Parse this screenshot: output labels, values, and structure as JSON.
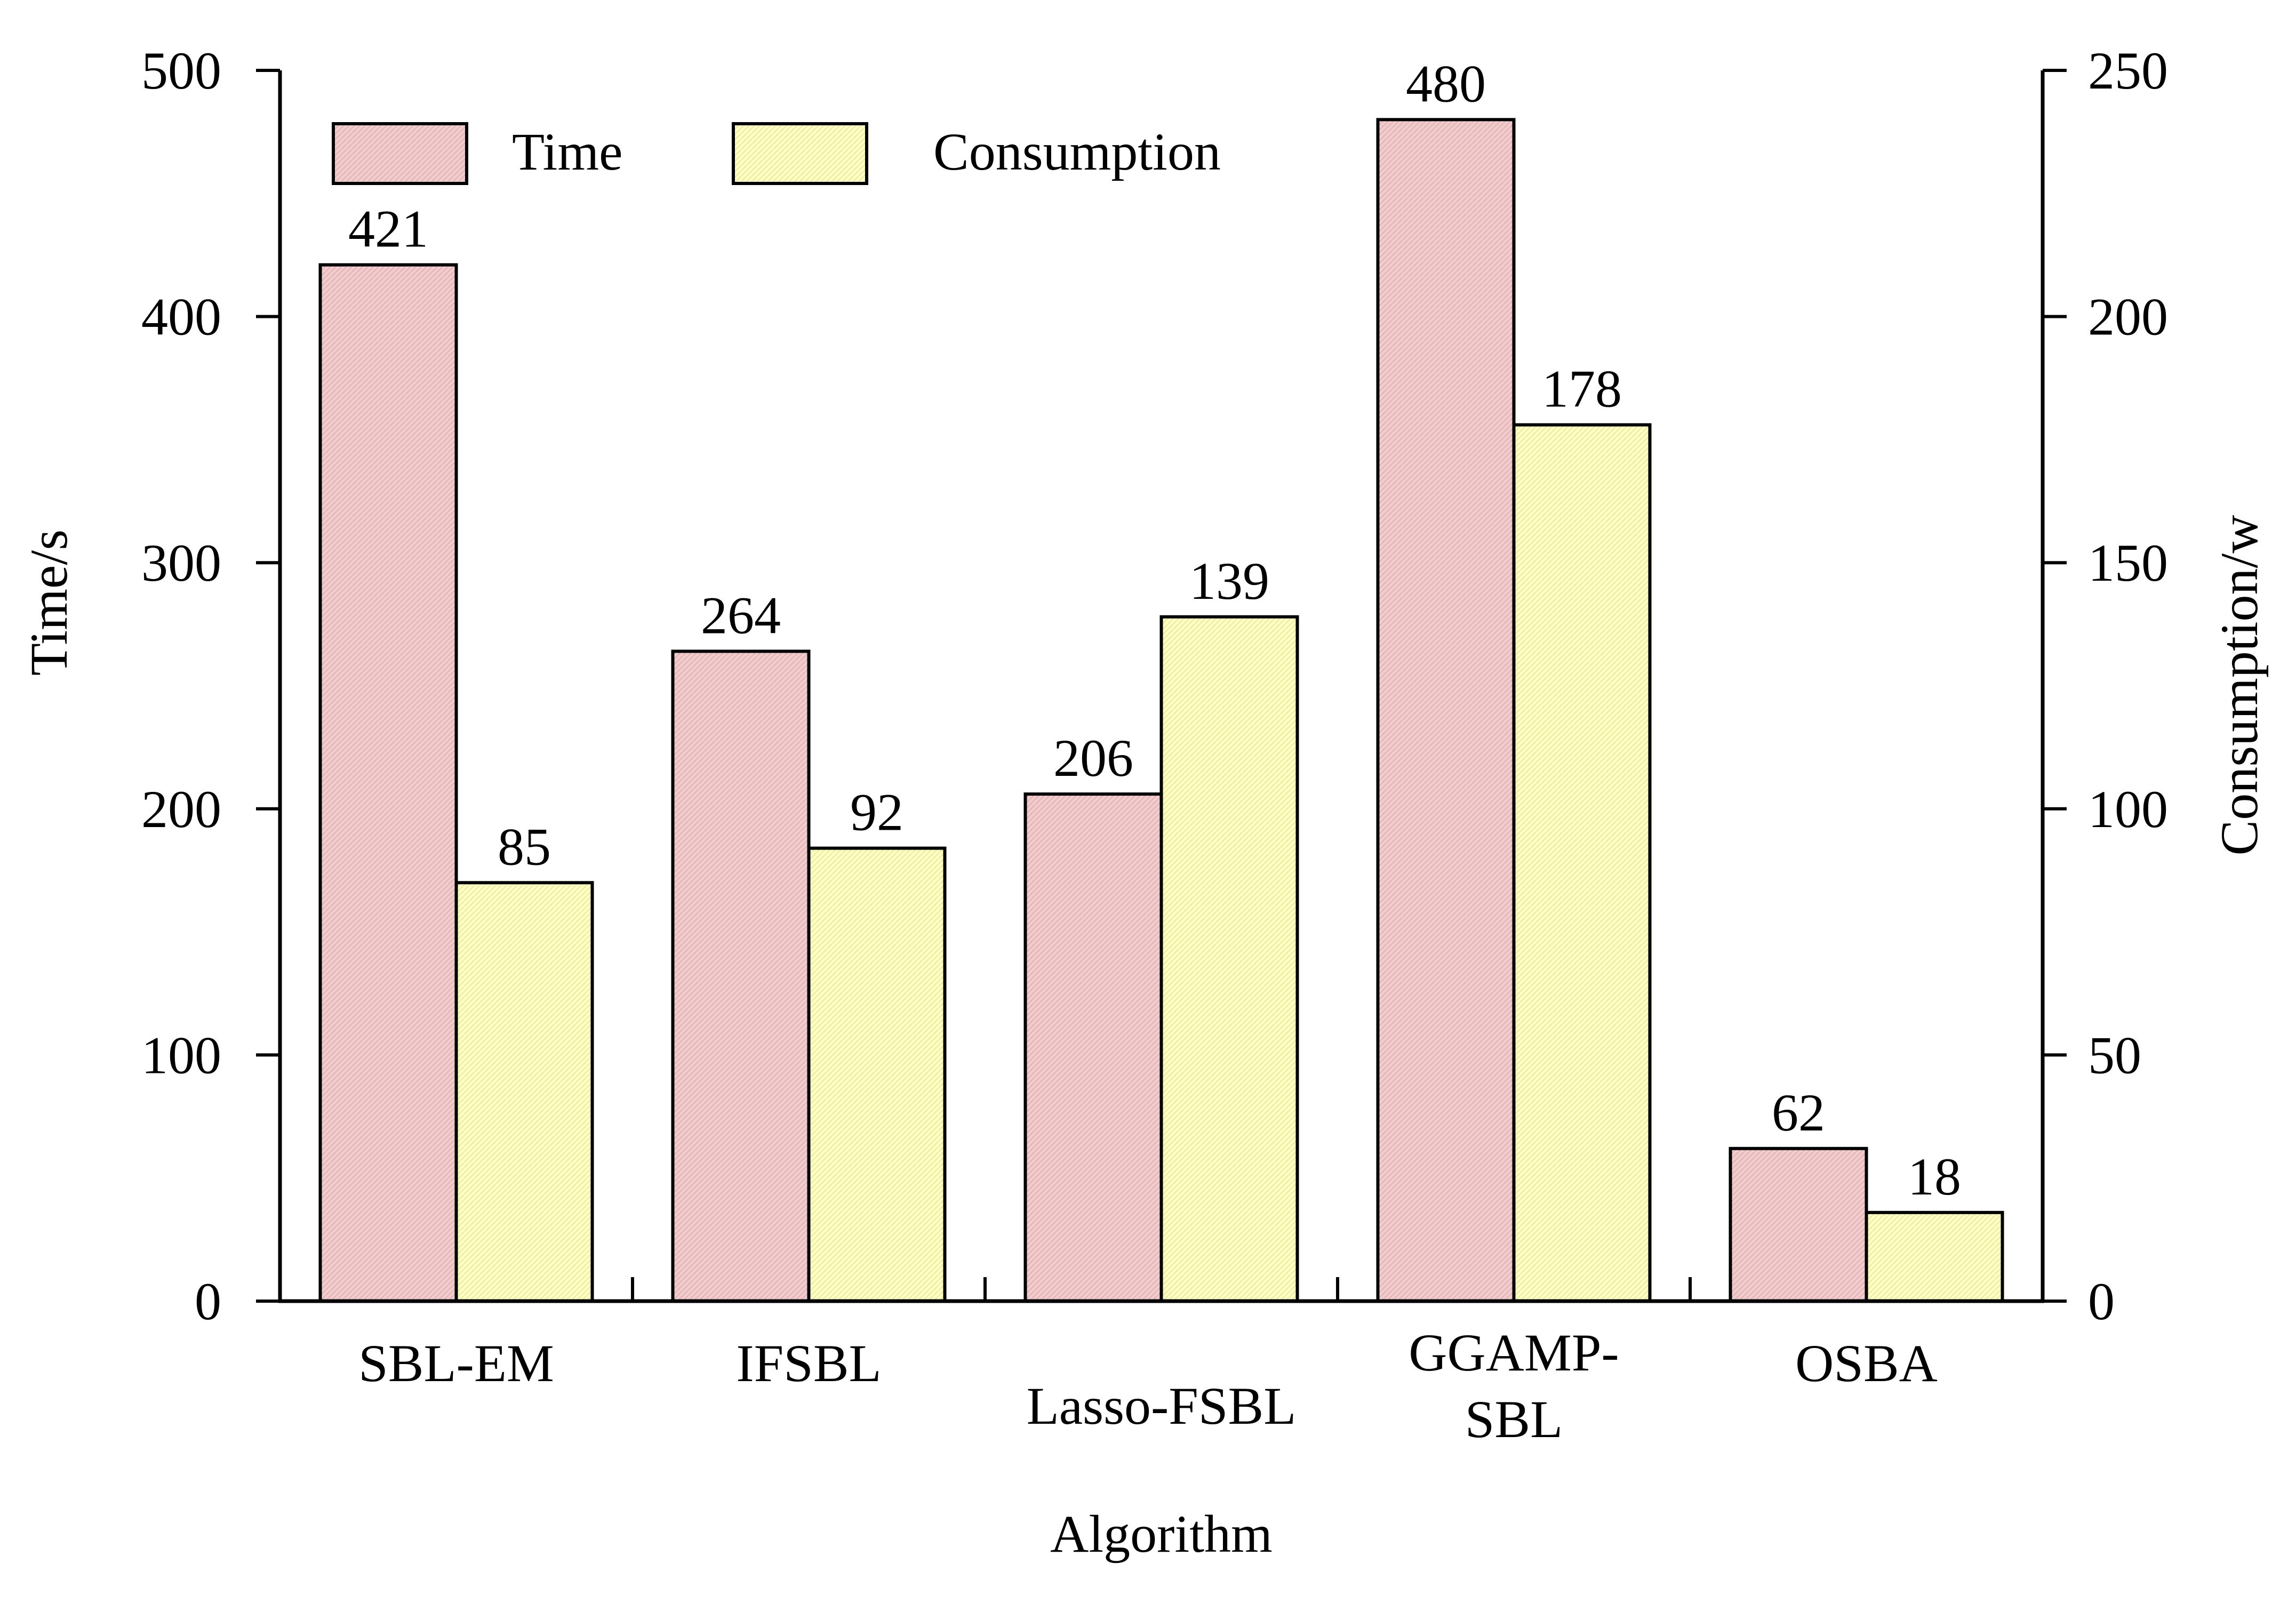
{
  "chart_data": {
    "type": "bar",
    "xlabel": "Algorithm",
    "categories": [
      "SBL-EM",
      "IFSBL",
      "Lasso-FSBL",
      "GGAMP-\nSBL",
      "OSBA"
    ],
    "series": [
      {
        "name": "Time",
        "axis": "left",
        "values": [
          421,
          264,
          206,
          480,
          62
        ],
        "value_labels": [
          "421",
          "264",
          "206",
          "480",
          "62"
        ],
        "color": "#f2cccc"
      },
      {
        "name": "Consumption",
        "axis": "right",
        "values": [
          85,
          92,
          139,
          178,
          18
        ],
        "value_labels": [
          "85",
          "92",
          "139",
          "178",
          "18"
        ],
        "color": "#ffffc2"
      }
    ],
    "y_left": {
      "label": "Time/s",
      "lim": [
        0,
        500
      ],
      "ticks": [
        "0",
        "100",
        "200",
        "300",
        "400",
        "500"
      ]
    },
    "y_right": {
      "label": "Consumption/w",
      "lim": [
        0,
        250
      ],
      "ticks": [
        "0",
        "50",
        "100",
        "150",
        "200",
        "250"
      ]
    },
    "legend": {
      "position": "top-left",
      "orientation": "horizontal"
    },
    "grid": false
  }
}
